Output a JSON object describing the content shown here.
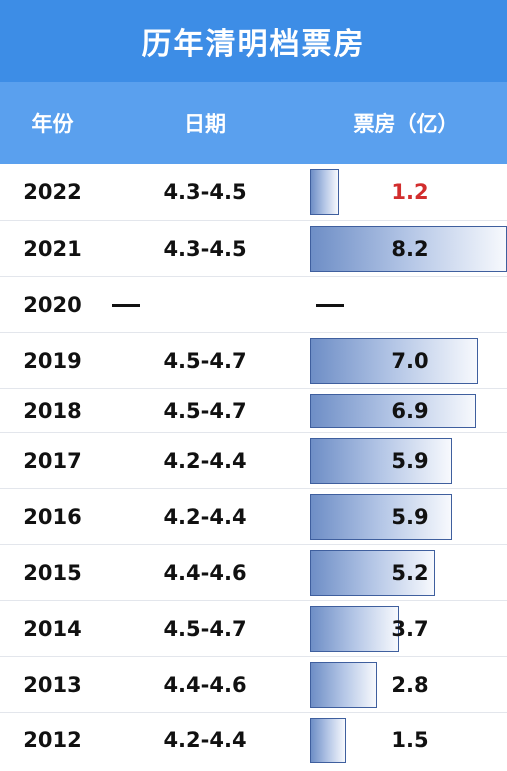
{
  "title": "历年清明档票房",
  "header": {
    "year": "年份",
    "date": "日期",
    "box_office": "票房（亿）"
  },
  "colors": {
    "title_bg": "#3d8de6",
    "header_bg": "#5aa0ee",
    "bar_start": "#6e8ec6",
    "bar_end": "#f7f9fd",
    "bar_border": "#3f5f9e",
    "highlight_value": "#d22d2d"
  },
  "chart_data": {
    "type": "table",
    "title": "历年清明档票房",
    "columns": [
      "年份",
      "日期",
      "票房（亿）"
    ],
    "x_range": [
      0,
      8.2
    ],
    "rows": [
      {
        "year": "2022",
        "date": "4.3-4.5",
        "value": 1.2,
        "label": "1.2",
        "highlight": true
      },
      {
        "year": "2021",
        "date": "4.3-4.5",
        "value": 8.2,
        "label": "8.2"
      },
      {
        "year": "2020",
        "date": "—",
        "value": null,
        "label": "—"
      },
      {
        "year": "2019",
        "date": "4.5-4.7",
        "value": 7.0,
        "label": "7.0"
      },
      {
        "year": "2018",
        "date": "4.5-4.7",
        "value": 6.9,
        "label": "6.9"
      },
      {
        "year": "2017",
        "date": "4.2-4.4",
        "value": 5.9,
        "label": "5.9"
      },
      {
        "year": "2016",
        "date": "4.2-4.4",
        "value": 5.9,
        "label": "5.9"
      },
      {
        "year": "2015",
        "date": "4.4-4.6",
        "value": 5.2,
        "label": "5.2"
      },
      {
        "year": "2014",
        "date": "4.5-4.7",
        "value": 3.7,
        "label": "3.7"
      },
      {
        "year": "2013",
        "date": "4.4-4.6",
        "value": 2.8,
        "label": "2.8"
      },
      {
        "year": "2012",
        "date": "4.2-4.4",
        "value": 1.5,
        "label": "1.5"
      }
    ]
  }
}
